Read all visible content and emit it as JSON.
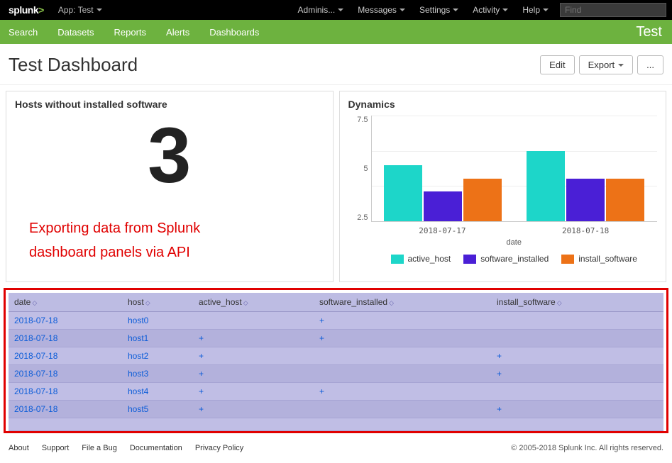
{
  "topbar": {
    "logo_text": "splunk",
    "logo_gt": ">",
    "app_label": "App: Test",
    "menu": [
      "Adminis...",
      "Messages",
      "Settings",
      "Activity",
      "Help"
    ],
    "search_placeholder": "Find"
  },
  "navbar": {
    "items": [
      "Search",
      "Datasets",
      "Reports",
      "Alerts",
      "Dashboards"
    ],
    "app_name": "Test"
  },
  "dash_header": {
    "title": "Test Dashboard",
    "edit_label": "Edit",
    "export_label": "Export",
    "more_label": "..."
  },
  "panel_left": {
    "title": "Hosts without installed software",
    "big_number": "3",
    "overlay_line1": "Exporting data from Splunk",
    "overlay_line2": "dashboard panels via API"
  },
  "chart": {
    "title": "Dynamics",
    "type": "bar",
    "y_ticks": [
      "7.5",
      "5",
      "2.5"
    ],
    "ylim_max": 7.5,
    "x_title": "date",
    "categories": [
      "2018-07-17",
      "2018-07-18"
    ],
    "series": [
      {
        "name": "active_host",
        "color": "#1dd6c9",
        "values": [
          4.0,
          5.0
        ]
      },
      {
        "name": "software_installed",
        "color": "#4a1fd6",
        "values": [
          2.1,
          3.0
        ]
      },
      {
        "name": "install_software",
        "color": "#ed7217",
        "values": [
          3.0,
          3.0
        ]
      }
    ],
    "grid_color": "#eeeeee",
    "axis_color": "#cccccc"
  },
  "table": {
    "columns": [
      "date",
      "host",
      "active_host",
      "software_installed",
      "install_software"
    ],
    "rows": [
      [
        "2018-07-18",
        "host0",
        "",
        "+",
        ""
      ],
      [
        "2018-07-18",
        "host1",
        "+",
        "+",
        ""
      ],
      [
        "2018-07-18",
        "host2",
        "+",
        "",
        "+"
      ],
      [
        "2018-07-18",
        "host3",
        "+",
        "",
        "+"
      ],
      [
        "2018-07-18",
        "host4",
        "+",
        "+",
        ""
      ],
      [
        "2018-07-18",
        "host5",
        "+",
        "",
        "+"
      ]
    ]
  },
  "footer": {
    "links": [
      "About",
      "Support",
      "File a Bug",
      "Documentation",
      "Privacy Policy"
    ],
    "copyright": "© 2005-2018 Splunk Inc. All rights reserved."
  }
}
